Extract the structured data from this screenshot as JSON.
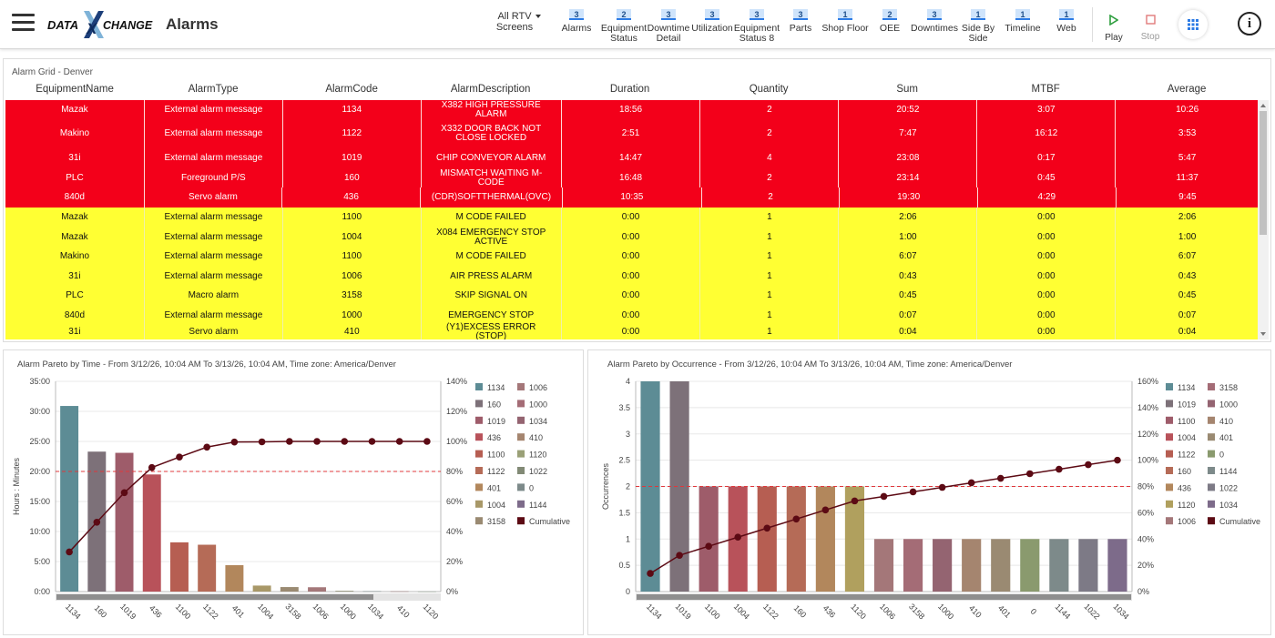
{
  "header": {
    "title": "Alarms",
    "rtv_label": "All RTV Screens",
    "tabs": [
      {
        "badge": "3",
        "label": "Alarms"
      },
      {
        "badge": "2",
        "label": "Equipment Status"
      },
      {
        "badge": "3",
        "label": "Downtime Detail"
      },
      {
        "badge": "3",
        "label": "Utilization"
      },
      {
        "badge": "3",
        "label": "Equipment Status 8"
      },
      {
        "badge": "3",
        "label": "Parts"
      },
      {
        "badge": "1",
        "label": "Shop Floor"
      },
      {
        "badge": "2",
        "label": "OEE"
      },
      {
        "badge": "3",
        "label": "Downtimes"
      },
      {
        "badge": "1",
        "label": "Side By Side"
      },
      {
        "badge": "1",
        "label": "Timeline"
      },
      {
        "badge": "1",
        "label": "Web"
      }
    ],
    "play_label": "Play",
    "stop_label": "Stop",
    "colors": {
      "play": "#2e9e3e",
      "stop": "#e07a7a",
      "badge": "#cfe4fb",
      "grid_icon": "#2c7be5"
    }
  },
  "logo": {
    "text_left": "DATA",
    "text_x": "X",
    "text_right": "CHANGE"
  },
  "grid": {
    "caption": "Alarm Grid - Denver",
    "columns": [
      "EquipmentName",
      "AlarmType",
      "AlarmCode",
      "AlarmDescription",
      "Duration",
      "Quantity",
      "Sum",
      "MTBF",
      "Average"
    ],
    "colors": {
      "red": "#f3001a",
      "yellow": "#ffff33"
    },
    "rows": [
      {
        "color": "red",
        "cells": [
          "Mazak",
          "External alarm message",
          "1134",
          "X382 HIGH PRESSURE ALARM",
          "18:56",
          "2",
          "20:52",
          "3:07",
          "10:26"
        ]
      },
      {
        "color": "red",
        "cells": [
          "Makino",
          "External alarm message",
          "1122",
          "X332 DOOR BACK NOT CLOSE LOCKED",
          "2:51",
          "2",
          "7:47",
          "16:12",
          "3:53"
        ]
      },
      {
        "color": "red",
        "cells": [
          "31i",
          "External alarm message",
          "1019",
          "CHIP CONVEYOR ALARM",
          "14:47",
          "4",
          "23:08",
          "0:17",
          "5:47"
        ]
      },
      {
        "color": "red",
        "cells": [
          "PLC",
          "Foreground P/S",
          "160",
          "MISMATCH WAITING M-CODE",
          "16:48",
          "2",
          "23:14",
          "0:45",
          "11:37"
        ]
      },
      {
        "color": "red",
        "cells": [
          "840d",
          "Servo alarm",
          "436",
          "(CDR)SOFTTHERMAL(OVC)",
          "10:35",
          "2",
          "19:30",
          "4:29",
          "9:45"
        ]
      },
      {
        "color": "yellow",
        "cells": [
          "Mazak",
          "External alarm message",
          "1100",
          "M CODE FAILED",
          "0:00",
          "1",
          "2:06",
          "0:00",
          "2:06"
        ]
      },
      {
        "color": "yellow",
        "cells": [
          "Mazak",
          "External alarm message",
          "1004",
          "X084 EMERGENCY STOP ACTIVE",
          "0:00",
          "1",
          "1:00",
          "0:00",
          "1:00"
        ]
      },
      {
        "color": "yellow",
        "cells": [
          "Makino",
          "External alarm message",
          "1100",
          "M CODE FAILED",
          "0:00",
          "1",
          "6:07",
          "0:00",
          "6:07"
        ]
      },
      {
        "color": "yellow",
        "cells": [
          "31i",
          "External alarm message",
          "1006",
          "AIR PRESS ALARM",
          "0:00",
          "1",
          "0:43",
          "0:00",
          "0:43"
        ]
      },
      {
        "color": "yellow",
        "cells": [
          "PLC",
          "Macro alarm",
          "3158",
          "SKIP SIGNAL ON",
          "0:00",
          "1",
          "0:45",
          "0:00",
          "0:45"
        ]
      },
      {
        "color": "yellow",
        "cells": [
          "840d",
          "External alarm message",
          "1000",
          "EMERGENCY STOP",
          "0:00",
          "1",
          "0:07",
          "0:00",
          "0:07"
        ]
      },
      {
        "color": "yellow",
        "cells": [
          "31i",
          "Servo alarm",
          "410",
          "(Y1)EXCESS ERROR (STOP)",
          "0:00",
          "1",
          "0:04",
          "0:00",
          "0:04"
        ]
      }
    ]
  },
  "chart_data": [
    {
      "type": "bar",
      "title": "Alarm Pareto by Time - From 3/12/26, 10:04 AM To 3/13/26, 10:04 AM, Time zone: America/Denver",
      "ylabel": "Hours : Minutes",
      "ylim": [
        0,
        35
      ],
      "y_ticks": [
        "0:00",
        "5:00",
        "10:00",
        "15:00",
        "20:00",
        "25:00",
        "30:00",
        "35:00"
      ],
      "y2_ticks": [
        "0%",
        "20%",
        "40%",
        "60%",
        "80%",
        "100%",
        "120%",
        "140%"
      ],
      "y2lim": [
        0,
        140
      ],
      "threshold_pct": 80,
      "categories": [
        "1134",
        "160",
        "1019",
        "436",
        "1100",
        "1122",
        "401",
        "1004",
        "3158",
        "1006",
        "1000",
        "1034",
        "410",
        "1120"
      ],
      "values": [
        30.9,
        23.3,
        23.1,
        19.5,
        8.2,
        7.8,
        4.4,
        1.0,
        0.75,
        0.72,
        0.12,
        0.07,
        0.05,
        0.02
      ],
      "colors": [
        "#5d8c95",
        "#7d7179",
        "#9e5c6a",
        "#b8525a",
        "#b65e52",
        "#b56b57",
        "#b2875c",
        "#a89868",
        "#9a8a72",
        "#a47779",
        "#8a8a6e",
        "#7d8a8a",
        "#9a7a7a",
        "#8a9a88"
      ],
      "cumulative": [
        26.4,
        46.2,
        65.9,
        82.6,
        89.6,
        96.2,
        99.6,
        99.7,
        100,
        100,
        100,
        100,
        100,
        100
      ],
      "cumulative_color": "#5c0a14",
      "legend": {
        "placement": "right",
        "col1": [
          [
            "1134",
            "#5d8c95"
          ],
          [
            "160",
            "#7d7179"
          ],
          [
            "1019",
            "#9e5c6a"
          ],
          [
            "436",
            "#b8525a"
          ],
          [
            "1100",
            "#b65e52"
          ],
          [
            "1122",
            "#b56b57"
          ],
          [
            "401",
            "#b2875c"
          ],
          [
            "1004",
            "#a89868"
          ],
          [
            "3158",
            "#9a8a72"
          ]
        ],
        "col2": [
          [
            "1006",
            "#a47779"
          ],
          [
            "1000",
            "#a46c76"
          ],
          [
            "1034",
            "#946471"
          ],
          [
            "410",
            "#a5856f"
          ],
          [
            "1120",
            "#9aa077"
          ],
          [
            "1022",
            "#828a76"
          ],
          [
            "0",
            "#7d8a8a"
          ],
          [
            "1144",
            "#7d6b8a"
          ],
          [
            "Cumulative",
            "#5c0a14"
          ]
        ]
      }
    },
    {
      "type": "bar",
      "title": "Alarm Pareto by Occurrence - From 3/12/26, 10:04 AM To 3/13/26, 10:04 AM, Time zone: America/Denver",
      "ylabel": "Occurrences",
      "ylim": [
        0,
        4
      ],
      "y_ticks": [
        "0",
        "0.5",
        "1",
        "1.5",
        "2",
        "2.5",
        "3",
        "3.5",
        "4"
      ],
      "y2_ticks": [
        "0%",
        "20%",
        "40%",
        "60%",
        "80%",
        "100%",
        "120%",
        "140%",
        "160%"
      ],
      "y2lim": [
        0,
        160
      ],
      "threshold_pct": 80,
      "categories": [
        "1134",
        "1019",
        "1100",
        "1004",
        "1122",
        "160",
        "436",
        "1120",
        "1006",
        "3158",
        "1000",
        "410",
        "401",
        "0",
        "1144",
        "1022",
        "1034"
      ],
      "values": [
        4,
        4,
        2,
        2,
        2,
        2,
        2,
        2,
        1,
        1,
        1,
        1,
        1,
        1,
        1,
        1,
        1
      ],
      "colors": [
        "#5d8c95",
        "#7d7179",
        "#9e5c6a",
        "#b8525a",
        "#b65e52",
        "#b56b57",
        "#b2875c",
        "#b0a05e",
        "#a47779",
        "#a46c76",
        "#946471",
        "#a5856f",
        "#9a8a72",
        "#8a9a6e",
        "#7d8a8a",
        "#7d7a86",
        "#7d6b8a"
      ],
      "cumulative": [
        13.8,
        27.6,
        34.5,
        41.4,
        48.3,
        55.2,
        62.1,
        69.0,
        72.4,
        75.9,
        79.3,
        82.8,
        86.2,
        89.7,
        93.1,
        96.6,
        100
      ],
      "cumulative_color": "#5c0a14",
      "legend": {
        "placement": "right",
        "col1": [
          [
            "1134",
            "#5d8c95"
          ],
          [
            "1019",
            "#7d7179"
          ],
          [
            "1100",
            "#9e5c6a"
          ],
          [
            "1004",
            "#b8525a"
          ],
          [
            "1122",
            "#b65e52"
          ],
          [
            "160",
            "#b56b57"
          ],
          [
            "436",
            "#b2875c"
          ],
          [
            "1120",
            "#b0a05e"
          ],
          [
            "1006",
            "#a47779"
          ]
        ],
        "col2": [
          [
            "3158",
            "#a46c76"
          ],
          [
            "1000",
            "#946471"
          ],
          [
            "410",
            "#a5856f"
          ],
          [
            "401",
            "#9a8a72"
          ],
          [
            "0",
            "#8a9a6e"
          ],
          [
            "1144",
            "#7d8a8a"
          ],
          [
            "1022",
            "#7d7a86"
          ],
          [
            "1034",
            "#7d6b8a"
          ],
          [
            "Cumulative",
            "#5c0a14"
          ]
        ]
      }
    }
  ]
}
